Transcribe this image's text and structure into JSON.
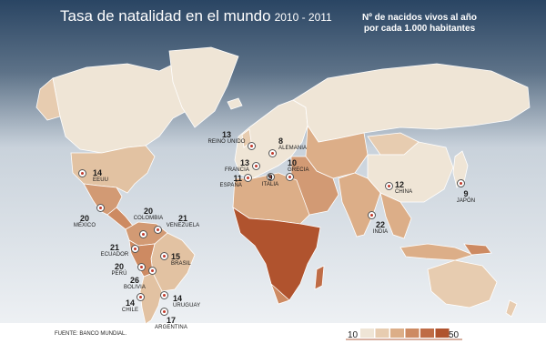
{
  "header": {
    "title": "Tasa de natalidad en el mundo",
    "years": "2010 - 2011",
    "note_line1": "Nº de nacidos vivos al año",
    "note_line2": "por cada 1.000 habitantes"
  },
  "source": "FUENTE: BANCO MUNDIAL.",
  "legend": {
    "min_label": "10",
    "max_label": "50",
    "colors": [
      "#efe5d6",
      "#e7ccb0",
      "#dcae88",
      "#cd8a62",
      "#bf6c46",
      "#b0532e"
    ]
  },
  "colors": {
    "ocean_top": "#2a4563",
    "ocean_bottom": "#eef1f4",
    "low": "#efe5d6",
    "mid_low": "#e2c2a2",
    "mid": "#d29a74",
    "high": "#c0704a",
    "very_high": "#b0532e",
    "greenland": "#efe5d6"
  },
  "countries": [
    {
      "id": "reino-unido",
      "name": "REINO UNIDO",
      "value": "13"
    },
    {
      "id": "alemania",
      "name": "ALEMANIA",
      "value": "8"
    },
    {
      "id": "francia",
      "name": "FRANCIA",
      "value": "13"
    },
    {
      "id": "grecia",
      "name": "GRECIA",
      "value": "10"
    },
    {
      "id": "espana",
      "name": "ESPAÑA",
      "value": "11"
    },
    {
      "id": "italia",
      "name": "ITALIA",
      "value": "9"
    },
    {
      "id": "china",
      "name": "CHINA",
      "value": "12"
    },
    {
      "id": "japon",
      "name": "JAPÓN",
      "value": "9"
    },
    {
      "id": "india",
      "name": "INDIA",
      "value": "22"
    },
    {
      "id": "eeuu",
      "name": "EEUU",
      "value": "14"
    },
    {
      "id": "mexico",
      "name": "MÉXICO",
      "value": "20"
    },
    {
      "id": "colombia",
      "name": "COLOMBIA",
      "value": "20"
    },
    {
      "id": "venezuela",
      "name": "VENEZUELA",
      "value": "21"
    },
    {
      "id": "ecuador",
      "name": "ECUADOR",
      "value": "21"
    },
    {
      "id": "peru",
      "name": "PERÚ",
      "value": "20"
    },
    {
      "id": "brasil",
      "name": "BRASIL",
      "value": "15"
    },
    {
      "id": "bolivia",
      "name": "BOLIVIA",
      "value": "26"
    },
    {
      "id": "chile",
      "name": "CHILE",
      "value": "14"
    },
    {
      "id": "uruguay",
      "name": "URUGUAY",
      "value": "14"
    },
    {
      "id": "argentina",
      "name": "ARGENTINA",
      "value": "17"
    }
  ]
}
